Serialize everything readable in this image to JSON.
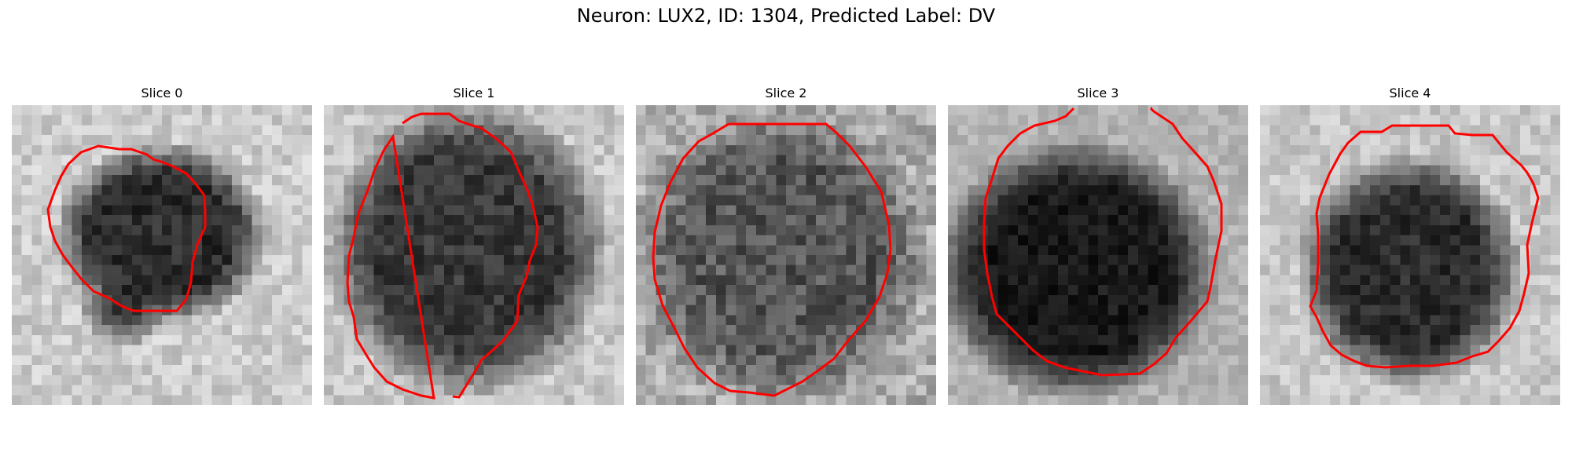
{
  "figure": {
    "title": "Neuron: LUX2, ID: 1304, Predicted Label: DV"
  },
  "colors": {
    "contour": "#ff0000",
    "background": "#ffffff"
  },
  "slices": [
    {
      "title": "Slice 0"
    },
    {
      "title": "Slice 1"
    },
    {
      "title": "Slice 2"
    },
    {
      "title": "Slice 3"
    },
    {
      "title": "Slice 4"
    }
  ]
}
